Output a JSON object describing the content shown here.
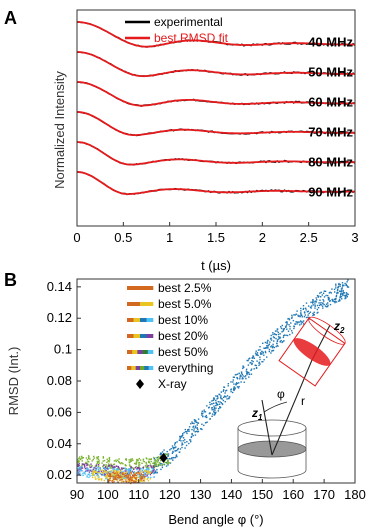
{
  "chart_data": [
    {
      "type": "line",
      "panel_label": "A",
      "xlabel": "t (µs)",
      "ylabel": "Normalized Intensity",
      "xlim": [
        0,
        3
      ],
      "xticks": [
        "0",
        "0.5",
        "1",
        "1.5",
        "2",
        "2.5",
        "3"
      ],
      "grid": false,
      "legend": {
        "placement": "top-center",
        "entries": [
          {
            "name": "experimental",
            "color": "#000000"
          },
          {
            "name": "best RMSD fit",
            "color": "#e41a1c"
          }
        ]
      },
      "series": [
        {
          "label": "40 MHz",
          "offset": 0,
          "min_t": 0.75,
          "min_depth": 0.4,
          "peak_t": 1.3
        },
        {
          "label": "50 MHz",
          "offset": 1,
          "min_t": 0.72,
          "min_depth": 0.38,
          "peak_t": 1.28
        },
        {
          "label": "60 MHz",
          "offset": 2,
          "min_t": 0.7,
          "min_depth": 0.36,
          "peak_t": 1.25
        },
        {
          "label": "70 MHz",
          "offset": 3,
          "min_t": 0.62,
          "min_depth": 0.34,
          "peak_t": 1.2
        },
        {
          "label": "80 MHz",
          "offset": 4,
          "min_t": 0.58,
          "min_depth": 0.32,
          "peak_t": 1.15
        },
        {
          "label": "90 MHz",
          "offset": 5,
          "min_t": 0.55,
          "min_depth": 0.3,
          "peak_t": 1.1
        }
      ]
    },
    {
      "type": "scatter",
      "panel_label": "B",
      "xlabel": "Bend angle φ (°)",
      "ylabel": "RMSD (Int.)",
      "xlim": [
        90,
        180
      ],
      "ylim": [
        0.015,
        0.145
      ],
      "xticks": [
        "90",
        "100",
        "110",
        "120",
        "130",
        "140",
        "150",
        "160",
        "170",
        "180"
      ],
      "yticks": [
        "0.02",
        "0.04",
        "0.06",
        "0.08",
        "0.1",
        "0.12",
        "0.14"
      ],
      "grid": false,
      "legend": {
        "placement": "top-left",
        "entries": [
          {
            "name": "best 2.5%",
            "colors": [
              "#d2691e"
            ]
          },
          {
            "name": "best 5.0%",
            "colors": [
              "#d2691e",
              "#e8c520"
            ]
          },
          {
            "name": "best 10%",
            "colors": [
              "#d2691e",
              "#e8c520",
              "#1f77b4",
              "#4fc3f7"
            ]
          },
          {
            "name": "best 20%",
            "colors": [
              "#d2691e",
              "#e8c520",
              "#1f77b4",
              "#7b3fa0"
            ]
          },
          {
            "name": "best 50%",
            "colors": [
              "#d2691e",
              "#e8c520",
              "#7b3fa0",
              "#2e7d32",
              "#4fc3f7"
            ]
          },
          {
            "name": "everything",
            "colors": [
              "#d2691e",
              "#e8c520",
              "#7b3fa0",
              "#6aaa2a",
              "#1f77b4",
              "#4fc3f7"
            ]
          },
          {
            "name": "X-ray",
            "marker": "diamond",
            "colors": [
              "#000000"
            ]
          }
        ]
      },
      "series": [
        {
          "name": "everything",
          "color": "#1f77b4",
          "x": [
            115,
            120,
            125,
            130,
            135,
            140,
            145,
            150,
            155,
            160,
            165,
            170,
            175,
            178
          ],
          "y": [
            0.026,
            0.033,
            0.043,
            0.054,
            0.065,
            0.076,
            0.087,
            0.098,
            0.108,
            0.117,
            0.125,
            0.132,
            0.137,
            0.139
          ]
        },
        {
          "name": "best 50%",
          "color": "#7ab32e",
          "x": [
            90,
            95,
            100,
            105,
            110,
            115,
            120
          ],
          "y": [
            0.029,
            0.029,
            0.028,
            0.027,
            0.027,
            0.028,
            0.031
          ]
        },
        {
          "name": "best 20%",
          "color": "#7b3fa0",
          "x": [
            90,
            95,
            100,
            105,
            110,
            115
          ],
          "y": [
            0.024,
            0.024,
            0.023,
            0.022,
            0.022,
            0.023
          ]
        },
        {
          "name": "best 10%",
          "color": "#4fc3f7",
          "x": [
            90,
            95,
            100,
            105,
            110,
            115
          ],
          "y": [
            0.022,
            0.022,
            0.021,
            0.021,
            0.021,
            0.022
          ]
        },
        {
          "name": "best 5.0%",
          "color": "#e8c520",
          "x": [
            95,
            100,
            105,
            110,
            114
          ],
          "y": [
            0.02,
            0.02,
            0.019,
            0.019,
            0.02
          ]
        },
        {
          "name": "best 2.5%",
          "color": "#d2691e",
          "x": [
            100,
            104,
            108,
            112
          ],
          "y": [
            0.0185,
            0.0182,
            0.018,
            0.0185
          ]
        }
      ],
      "xray_point": {
        "x": 118,
        "y": 0.031
      },
      "inset_labels": {
        "angle": "φ",
        "distance": "r",
        "z1": "z",
        "z1_sub": "1",
        "z2": "z",
        "z2_sub": "2"
      }
    }
  ]
}
